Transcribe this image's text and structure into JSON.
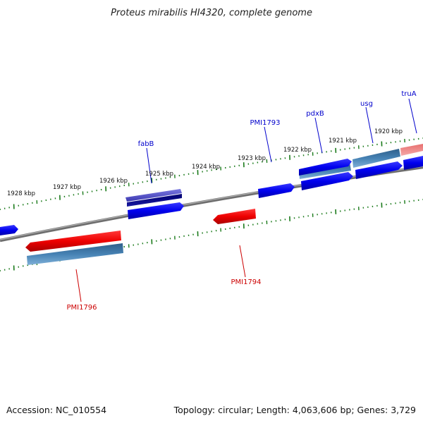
{
  "title": "Proteus mirabilis HI4320, complete genome",
  "footer": {
    "accession": "Accession: NC_010554",
    "summary": "Topology: circular; Length: 4,063,606 bp; Genes: 3,729"
  },
  "colors": {
    "forward_gene": "#0000ee",
    "reverse_gene": "#ee0000",
    "cds": "#4682b4",
    "trna": "#4b48c8",
    "forward_label": "#0000cc",
    "reverse_label": "#cc0000",
    "tick": "#1a7a1a",
    "backbone": "#808080"
  },
  "kbp_ticks": [
    {
      "label": "1928 kbp"
    },
    {
      "label": "1927 kbp"
    },
    {
      "label": "1926 kbp"
    },
    {
      "label": "1925 kbp"
    },
    {
      "label": "1924 kbp"
    },
    {
      "label": "1923 kbp"
    },
    {
      "label": "1922 kbp"
    },
    {
      "label": "1921 kbp"
    },
    {
      "label": "1920 kbp"
    }
  ],
  "gene_labels": [
    {
      "name": "fabB",
      "strand": "forward"
    },
    {
      "name": "PMI1793",
      "strand": "forward"
    },
    {
      "name": "pdxB",
      "strand": "forward"
    },
    {
      "name": "usg",
      "strand": "forward"
    },
    {
      "name": "truA",
      "strand": "forward"
    },
    {
      "name": "PMI1794",
      "strand": "reverse"
    },
    {
      "name": "PMI1796",
      "strand": "reverse"
    }
  ]
}
